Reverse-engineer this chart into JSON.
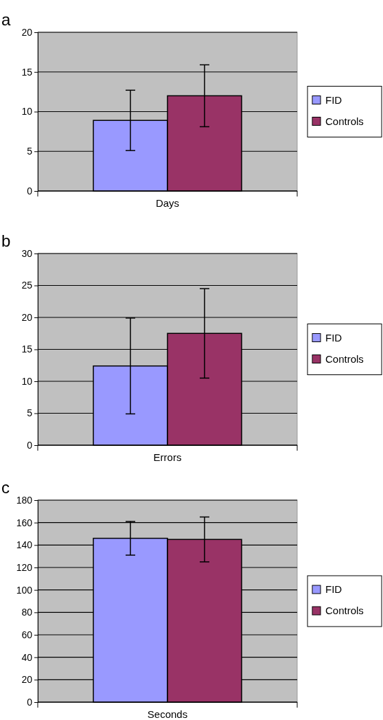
{
  "chart_data": [
    {
      "type": "bar",
      "title": "a",
      "categories": [
        "Days"
      ],
      "series": [
        {
          "name": "FID",
          "color": "#9999ff",
          "values": [
            8.9
          ],
          "errors": [
            3.8
          ]
        },
        {
          "name": "Controls",
          "color": "#993366",
          "values": [
            12
          ],
          "errors": [
            3.9
          ]
        }
      ],
      "ylim": [
        0,
        20
      ],
      "yticks": [
        0,
        5,
        10,
        15,
        20
      ],
      "grid": "y",
      "legend": "right"
    },
    {
      "type": "bar",
      "title": "b",
      "categories": [
        "Errors"
      ],
      "series": [
        {
          "name": "FID",
          "color": "#9999ff",
          "values": [
            12.4
          ],
          "errors": [
            7.5
          ]
        },
        {
          "name": "Controls",
          "color": "#993366",
          "values": [
            17.5
          ],
          "errors": [
            7
          ]
        }
      ],
      "ylim": [
        0,
        30
      ],
      "yticks": [
        0,
        5,
        10,
        15,
        20,
        25,
        30
      ],
      "grid": "y",
      "legend": "right"
    },
    {
      "type": "bar",
      "title": "c",
      "categories": [
        "Seconds"
      ],
      "series": [
        {
          "name": "FID",
          "color": "#9999ff",
          "values": [
            146
          ],
          "errors": [
            15
          ]
        },
        {
          "name": "Controls",
          "color": "#993366",
          "values": [
            145
          ],
          "errors": [
            20
          ]
        }
      ],
      "ylim": [
        0,
        180
      ],
      "yticks": [
        0,
        20,
        40,
        60,
        80,
        100,
        120,
        140,
        160,
        180
      ],
      "grid": "y",
      "legend": "right"
    }
  ]
}
